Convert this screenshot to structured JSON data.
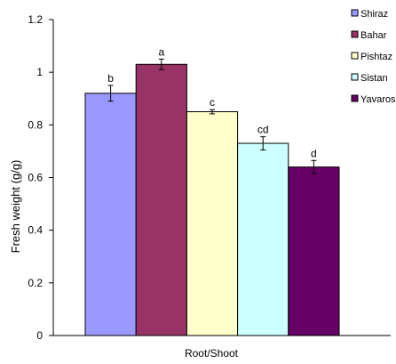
{
  "chart_data": {
    "type": "bar",
    "title": "",
    "xlabel": "Root/Shoot",
    "ylabel": "Fresh weight (g/g)",
    "ylim": [
      0,
      1.2
    ],
    "yticks": [
      "0",
      "0.2",
      "0.4",
      "0.6",
      "0.8",
      "1",
      "1.2"
    ],
    "grid": false,
    "legend_position": "top-right",
    "series": [
      {
        "name": "Shiraz",
        "value": 0.92,
        "error": 0.03,
        "letter": "b",
        "color": "#9999ff"
      },
      {
        "name": "Bahar",
        "value": 1.03,
        "error": 0.02,
        "letter": "a",
        "color": "#993366"
      },
      {
        "name": "Pishtaz",
        "value": 0.85,
        "error": 0.008,
        "letter": "c",
        "color": "#ffffcc"
      },
      {
        "name": "Sistan",
        "value": 0.73,
        "error": 0.025,
        "letter": "cd",
        "color": "#ccffff"
      },
      {
        "name": "Yavaros",
        "value": 0.64,
        "error": 0.025,
        "letter": "d",
        "color": "#660066"
      }
    ]
  }
}
